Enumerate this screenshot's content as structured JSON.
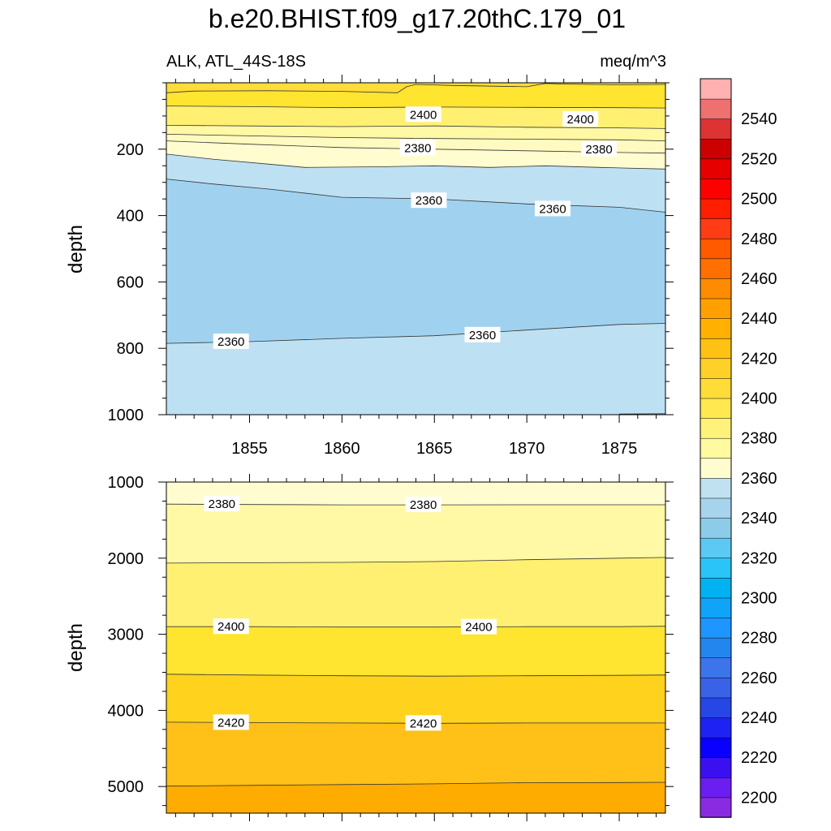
{
  "chart_data": {
    "type": "contour",
    "title": "b.e20.BHIST.f09_g17.20thC.179_01",
    "left_subtitle": "ALK, ATL_44S-18S",
    "right_subtitle": "meq/m^3",
    "xlabel": "",
    "ylabel": "depth",
    "x_ticks": [
      1855,
      1860,
      1865,
      1870,
      1875
    ],
    "xlim": [
      1850.5,
      1877.5
    ],
    "panels": [
      {
        "name": "upper",
        "ylim": [
          0,
          1000
        ],
        "y_ticks": [
          200,
          400,
          600,
          800,
          1000
        ],
        "contours": [
          {
            "level": 2410,
            "points": [
              [
                1850.5,
                30
              ],
              [
                1852,
                25
              ],
              [
                1856,
                24
              ],
              [
                1860,
                26
              ],
              [
                1863,
                30
              ],
              [
                1863.5,
                12
              ],
              [
                1864,
                5
              ],
              [
                1866,
                8
              ],
              [
                1870,
                12
              ],
              [
                1871,
                2
              ],
              [
                1872,
                4
              ],
              [
                1875,
                6
              ],
              [
                1877.5,
                5
              ]
            ]
          },
          {
            "level": 2400,
            "points": [
              [
                1850.5,
                70
              ],
              [
                1855,
                72
              ],
              [
                1860,
                75
              ],
              [
                1865,
                73
              ],
              [
                1870,
                74
              ],
              [
                1875,
                75
              ],
              [
                1877.5,
                76
              ]
            ]
          },
          {
            "level": 2390,
            "points": [
              [
                1850.5,
                128
              ],
              [
                1855,
                130
              ],
              [
                1860,
                132
              ],
              [
                1865,
                130
              ],
              [
                1870,
                134
              ],
              [
                1875,
                136
              ],
              [
                1877.5,
                138
              ]
            ]
          },
          {
            "level": 2385,
            "points": [
              [
                1850.5,
                155
              ],
              [
                1855,
                160
              ],
              [
                1860,
                165
              ],
              [
                1865,
                168
              ],
              [
                1870,
                170
              ],
              [
                1875,
                172
              ],
              [
                1877.5,
                175
              ]
            ]
          },
          {
            "level": 2380,
            "points": [
              [
                1850.5,
                175
              ],
              [
                1855,
                185
              ],
              [
                1860,
                195
              ],
              [
                1865,
                200
              ],
              [
                1870,
                205
              ],
              [
                1875,
                210
              ],
              [
                1877.5,
                212
              ]
            ]
          },
          {
            "level": 2370,
            "points": [
              [
                1850.5,
                215
              ],
              [
                1853,
                230
              ],
              [
                1856,
                245
              ],
              [
                1858,
                255
              ],
              [
                1862,
                253
              ],
              [
                1865,
                250
              ],
              [
                1868,
                255
              ],
              [
                1871,
                250
              ],
              [
                1874,
                255
              ],
              [
                1877.5,
                260
              ]
            ]
          },
          {
            "level": 2360,
            "points": [
              [
                1850.5,
                290
              ],
              [
                1853,
                305
              ],
              [
                1856,
                320
              ],
              [
                1860,
                345
              ],
              [
                1865,
                350
              ],
              [
                1870,
                365
              ],
              [
                1875,
                375
              ],
              [
                1877.5,
                390
              ]
            ]
          },
          {
            "level": 2360,
            "points": [
              [
                1850.5,
                785
              ],
              [
                1855,
                780
              ],
              [
                1860,
                770
              ],
              [
                1865,
                762
              ],
              [
                1870,
                745
              ],
              [
                1875,
                728
              ],
              [
                1877.5,
                725
              ]
            ]
          },
          {
            "level": 2370,
            "points": [
              [
                1875,
                998
              ],
              [
                1877.5,
                997
              ]
            ]
          }
        ],
        "labels": [
          {
            "text": "2400",
            "x": 1864.4,
            "y": 96
          },
          {
            "text": "2400",
            "x": 1872.9,
            "y": 110
          },
          {
            "text": "2380",
            "x": 1864.1,
            "y": 197
          },
          {
            "text": "2380",
            "x": 1873.9,
            "y": 200
          },
          {
            "text": "2360",
            "x": 1864.7,
            "y": 355
          },
          {
            "text": "2360",
            "x": 1871.4,
            "y": 380
          },
          {
            "text": "2360",
            "x": 1854.0,
            "y": 780
          },
          {
            "text": "2360",
            "x": 1867.6,
            "y": 760
          }
        ]
      },
      {
        "name": "lower",
        "ylim": [
          1000,
          5350
        ],
        "y_ticks": [
          1000,
          2000,
          3000,
          4000,
          5000
        ],
        "contours": [
          {
            "level": 2380,
            "points": [
              [
                1850.5,
                1290
              ],
              [
                1855,
                1295
              ],
              [
                1860,
                1300
              ],
              [
                1865,
                1300
              ],
              [
                1870,
                1298
              ],
              [
                1875,
                1298
              ],
              [
                1877.5,
                1298
              ]
            ]
          },
          {
            "level": 2390,
            "points": [
              [
                1850.5,
                2065
              ],
              [
                1855,
                2060
              ],
              [
                1860,
                2055
              ],
              [
                1865,
                2045
              ],
              [
                1870,
                2020
              ],
              [
                1875,
                2000
              ],
              [
                1877.5,
                1990
              ]
            ]
          },
          {
            "level": 2400,
            "points": [
              [
                1850.5,
                2900
              ],
              [
                1855,
                2900
              ],
              [
                1860,
                2905
              ],
              [
                1865,
                2905
              ],
              [
                1870,
                2900
              ],
              [
                1875,
                2900
              ],
              [
                1877.5,
                2895
              ]
            ]
          },
          {
            "level": 2410,
            "points": [
              [
                1850.5,
                3525
              ],
              [
                1855,
                3535
              ],
              [
                1860,
                3545
              ],
              [
                1865,
                3550
              ],
              [
                1870,
                3545
              ],
              [
                1875,
                3540
              ],
              [
                1877.5,
                3535
              ]
            ]
          },
          {
            "level": 2420,
            "points": [
              [
                1850.5,
                4155
              ],
              [
                1855,
                4160
              ],
              [
                1860,
                4165
              ],
              [
                1865,
                4170
              ],
              [
                1870,
                4165
              ],
              [
                1875,
                4165
              ],
              [
                1877.5,
                4165
              ]
            ]
          },
          {
            "level": 2430,
            "points": [
              [
                1850.5,
                4995
              ],
              [
                1855,
                4985
              ],
              [
                1860,
                4975
              ],
              [
                1865,
                4965
              ],
              [
                1870,
                4950
              ],
              [
                1875,
                4948
              ],
              [
                1877.5,
                4945
              ]
            ]
          }
        ],
        "labels": [
          {
            "text": "2380",
            "x": 1853.5,
            "y": 1290
          },
          {
            "text": "2380",
            "x": 1864.4,
            "y": 1300
          },
          {
            "text": "2400",
            "x": 1854.0,
            "y": 2900
          },
          {
            "text": "2400",
            "x": 1867.4,
            "y": 2905
          },
          {
            "text": "2420",
            "x": 1854.0,
            "y": 4160
          },
          {
            "text": "2420",
            "x": 1864.4,
            "y": 4170
          }
        ]
      }
    ],
    "colorbar": {
      "levels": [
        2190,
        2200,
        2210,
        2220,
        2230,
        2240,
        2250,
        2260,
        2270,
        2280,
        2290,
        2300,
        2310,
        2320,
        2330,
        2340,
        2350,
        2360,
        2370,
        2380,
        2390,
        2400,
        2410,
        2420,
        2430,
        2440,
        2450,
        2460,
        2470,
        2480,
        2490,
        2500,
        2510,
        2520,
        2530,
        2540,
        2550,
        2560
      ],
      "tick_labels": [
        2200,
        2220,
        2240,
        2260,
        2280,
        2300,
        2320,
        2340,
        2360,
        2380,
        2400,
        2420,
        2440,
        2460,
        2480,
        2500,
        2520,
        2540
      ],
      "colors": [
        "#8a2be2",
        "#6a1ef0",
        "#3a10f0",
        "#0a00ff",
        "#1e22f2",
        "#2646e6",
        "#3a62e6",
        "#3c74ec",
        "#2386ef",
        "#1e96ff",
        "#10a4f8",
        "#00b2f2",
        "#2ac4f8",
        "#5cc8f4",
        "#8ccce8",
        "#a6d4ec",
        "#c0e2f0",
        "#fffdd0",
        "#fffaa0",
        "#fff27a",
        "#ffe850",
        "#ffdc38",
        "#ffd028",
        "#ffc214",
        "#ffb000",
        "#ffa000",
        "#ff8c00",
        "#ff7000",
        "#ff5a00",
        "#ff3c14",
        "#ff1e00",
        "#ff0000",
        "#e60000",
        "#cc0000",
        "#dd3333",
        "#ee7070",
        "#ffb0b0"
      ]
    },
    "fill_levels_in_figure": [
      2350,
      2360,
      2370,
      2380,
      2390,
      2400,
      2410,
      2420,
      2430
    ],
    "fill_colors_in_figure": [
      "#a0d2f0",
      "#bde1f2",
      "#fffcd0",
      "#fff8a4",
      "#fff072",
      "#ffe430",
      "#ffd21e",
      "#ffc018",
      "#ffac00"
    ],
    "grid": false,
    "legend": "right"
  }
}
